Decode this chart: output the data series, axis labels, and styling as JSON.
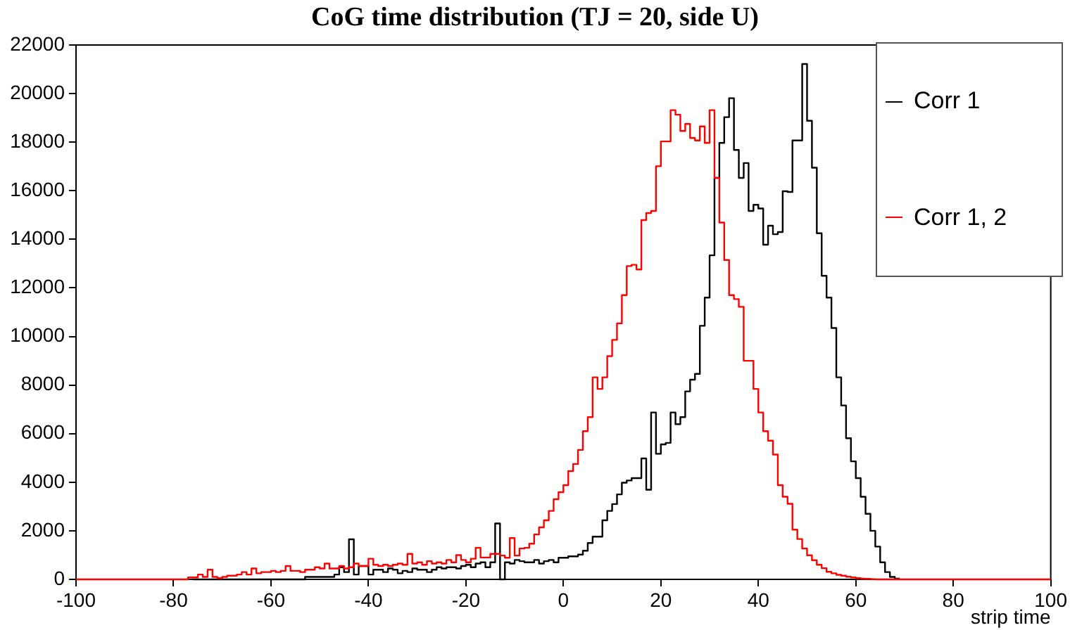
{
  "chart_data": {
    "type": "step",
    "title": "CoG time distribution (TJ = 20, side U)",
    "xlabel": "strip time",
    "x": [
      -100,
      -99,
      -98,
      -97,
      -96,
      -95,
      -94,
      -93,
      -92,
      -91,
      -90,
      -89,
      -88,
      -87,
      -86,
      -85,
      -84,
      -83,
      -82,
      -81,
      -80,
      -79,
      -78,
      -77,
      -76,
      -75,
      -74,
      -73,
      -72,
      -71,
      -70,
      -69,
      -68,
      -67,
      -66,
      -65,
      -64,
      -63,
      -62,
      -61,
      -60,
      -59,
      -58,
      -57,
      -56,
      -55,
      -54,
      -53,
      -52,
      -51,
      -50,
      -49,
      -48,
      -47,
      -46,
      -45,
      -44,
      -43,
      -42,
      -41,
      -40,
      -39,
      -38,
      -37,
      -36,
      -35,
      -34,
      -33,
      -32,
      -31,
      -30,
      -29,
      -28,
      -27,
      -26,
      -25,
      -24,
      -23,
      -22,
      -21,
      -20,
      -19,
      -18,
      -17,
      -16,
      -15,
      -14,
      -13,
      -12,
      -11,
      -10,
      -9,
      -8,
      -7,
      -6,
      -5,
      -4,
      -3,
      -2,
      -1,
      0,
      1,
      2,
      3,
      4,
      5,
      6,
      7,
      8,
      9,
      10,
      11,
      12,
      13,
      14,
      15,
      16,
      17,
      18,
      19,
      20,
      21,
      22,
      23,
      24,
      25,
      26,
      27,
      28,
      29,
      30,
      31,
      32,
      33,
      34,
      35,
      36,
      37,
      38,
      39,
      40,
      41,
      42,
      43,
      44,
      45,
      46,
      47,
      48,
      49,
      50,
      51,
      52,
      53,
      54,
      55,
      56,
      57,
      58,
      59,
      60,
      61,
      62,
      63,
      64,
      65,
      66,
      67,
      68,
      69,
      70,
      71,
      72,
      73,
      74,
      75,
      76,
      77,
      78,
      79,
      80,
      81,
      82,
      83,
      84,
      85,
      86,
      87,
      88,
      89,
      90,
      91,
      92,
      93,
      94,
      95,
      96,
      97,
      98,
      99,
      100
    ],
    "series": [
      {
        "name": "Corr 1",
        "color": "#000000",
        "values": [
          null,
          null,
          null,
          null,
          null,
          null,
          null,
          null,
          null,
          null,
          null,
          null,
          null,
          null,
          null,
          null,
          null,
          null,
          null,
          null,
          null,
          null,
          null,
          null,
          0,
          0,
          0,
          0,
          0,
          0,
          0,
          0,
          0,
          0,
          0,
          0,
          0,
          0,
          0,
          0,
          0,
          0,
          0,
          0,
          0,
          0,
          0,
          0,
          100,
          100,
          100,
          100,
          100,
          100,
          200,
          500,
          300,
          1650,
          200,
          550,
          550,
          200,
          400,
          400,
          300,
          450,
          400,
          250,
          350,
          300,
          450,
          400,
          400,
          300,
          400,
          500,
          450,
          500,
          500,
          450,
          550,
          600,
          500,
          650,
          700,
          500,
          700,
          2300,
          0,
          700,
          650,
          800,
          750,
          700,
          700,
          800,
          650,
          750,
          800,
          700,
          890,
          890,
          950,
          950,
          1020,
          1180,
          1500,
          1760,
          1760,
          2430,
          2820,
          3100,
          3500,
          3980,
          4070,
          4170,
          4170,
          4980,
          3690,
          6870,
          5170,
          5560,
          5620,
          6870,
          6390,
          6680,
          7740,
          8220,
          8460,
          10440,
          11600,
          13340,
          16530,
          17970,
          19030,
          19810,
          17680,
          16530,
          17140,
          15170,
          15420,
          15270,
          13780,
          14560,
          14210,
          14300,
          15980,
          15950,
          18070,
          18070,
          21220,
          18880,
          16950,
          14250,
          12500,
          11600,
          10350,
          8320,
          7160,
          5810,
          4860,
          4170,
          3400,
          2700,
          2000,
          1350,
          700,
          300,
          100,
          30,
          null,
          null,
          null,
          null,
          null,
          null,
          null,
          null,
          null,
          null,
          null,
          null,
          null,
          null,
          null,
          null,
          null,
          null,
          null,
          null,
          null,
          null,
          null,
          null,
          null,
          null,
          null,
          null,
          null,
          null,
          null
        ]
      },
      {
        "name": "Corr 1, 2",
        "color": "#ff0000",
        "values": [
          0,
          0,
          0,
          0,
          0,
          0,
          0,
          0,
          0,
          0,
          0,
          0,
          0,
          0,
          0,
          0,
          0,
          0,
          0,
          0,
          0,
          0,
          0,
          0,
          80,
          80,
          200,
          100,
          400,
          100,
          50,
          100,
          150,
          150,
          200,
          300,
          200,
          450,
          250,
          300,
          300,
          350,
          300,
          350,
          550,
          350,
          350,
          300,
          400,
          400,
          500,
          450,
          650,
          450,
          450,
          550,
          450,
          500,
          650,
          550,
          550,
          850,
          600,
          550,
          600,
          550,
          600,
          650,
          600,
          1050,
          650,
          700,
          600,
          750,
          650,
          700,
          650,
          800,
          700,
          1000,
          800,
          700,
          850,
          1300,
          900,
          900,
          1050,
          1050,
          980,
          890,
          1700,
          980,
          1270,
          1300,
          1470,
          1850,
          2140,
          2430,
          2820,
          3300,
          3590,
          3880,
          4460,
          4750,
          5330,
          6100,
          6680,
          8320,
          7840,
          8320,
          9190,
          9860,
          10540,
          11700,
          12900,
          12950,
          12760,
          14790,
          15080,
          15170,
          17010,
          18030,
          18030,
          19320,
          19130,
          18460,
          18750,
          18170,
          18070,
          18650,
          17970,
          19320,
          16530,
          14690,
          13150,
          11700,
          11540,
          11220,
          9000,
          9000,
          7840,
          6870,
          6100,
          5710,
          5140,
          3880,
          3400,
          3110,
          2050,
          1660,
          1270,
          990,
          790,
          600,
          460,
          310,
          250,
          190,
          150,
          110,
          80,
          50,
          30,
          20,
          10,
          0,
          0,
          0,
          0,
          0,
          0,
          0,
          0,
          0,
          0,
          0,
          0,
          0,
          0,
          0,
          0,
          0,
          0,
          0,
          0,
          0,
          0,
          0,
          0,
          0,
          0,
          0,
          0,
          0,
          0,
          0,
          0,
          0,
          0,
          0,
          0
        ]
      }
    ],
    "xlim": [
      -100,
      100
    ],
    "xticks": [
      -100,
      -80,
      -60,
      -40,
      -20,
      0,
      20,
      40,
      60,
      80,
      100
    ],
    "ylim": [
      0,
      22000
    ],
    "yticks": [
      0,
      2000,
      4000,
      6000,
      8000,
      10000,
      12000,
      14000,
      16000,
      18000,
      20000,
      22000
    ],
    "legend": "top right"
  }
}
